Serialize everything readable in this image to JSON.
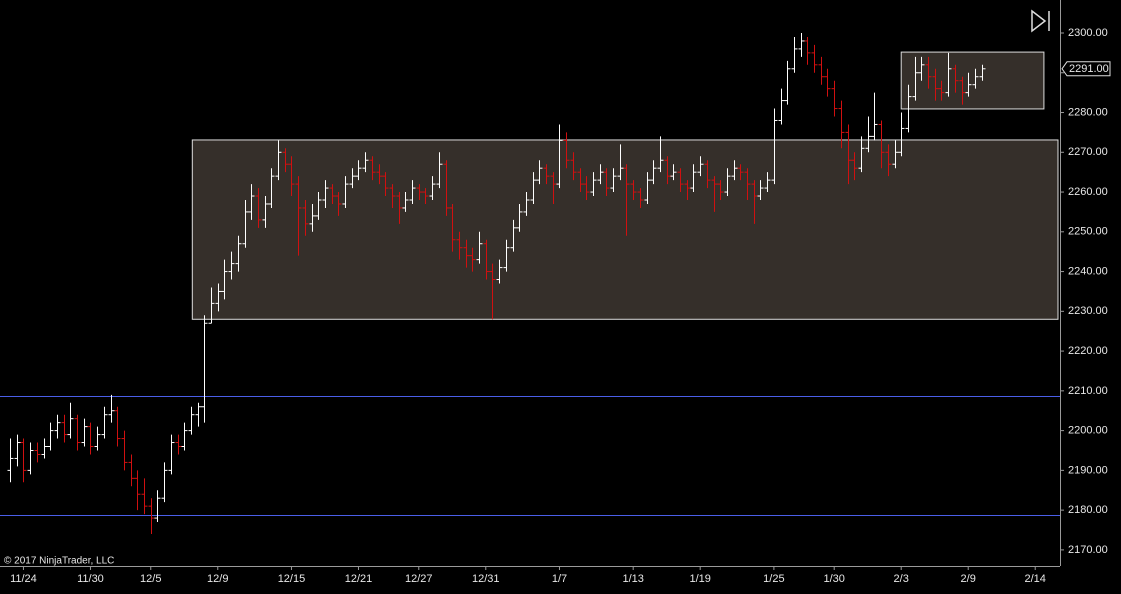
{
  "chart_data": {
    "type": "ohlc",
    "up_color": "#ffffff",
    "down_color": "#d01010",
    "line_color": "#4a5ee8",
    "box_fill": "#38322c",
    "box_stroke": "#dddddd",
    "attribution": "© 2017 NinjaTrader, LLC",
    "xlim": [
      -1.5,
      156.7
    ],
    "ylim": [
      2166.2,
      2308.3
    ],
    "xticks": [
      {
        "value": 2,
        "label": "11/24"
      },
      {
        "value": 12,
        "label": "11/30"
      },
      {
        "value": 21,
        "label": "12/5"
      },
      {
        "value": 31,
        "label": "12/9"
      },
      {
        "value": 42,
        "label": "12/15"
      },
      {
        "value": 52,
        "label": "12/21"
      },
      {
        "value": 61,
        "label": "12/27"
      },
      {
        "value": 71,
        "label": "12/31"
      },
      {
        "value": 82,
        "label": "1/7"
      },
      {
        "value": 93,
        "label": "1/13"
      },
      {
        "value": 103,
        "label": "1/19"
      },
      {
        "value": 114,
        "label": "1/25"
      },
      {
        "value": 123,
        "label": "1/30"
      },
      {
        "value": 133,
        "label": "2/3"
      },
      {
        "value": 143,
        "label": "2/9"
      },
      {
        "value": 153,
        "label": "2/14"
      }
    ],
    "yticks": [
      {
        "value": 2170,
        "label": "2170.00"
      },
      {
        "value": 2180,
        "label": "2180.00"
      },
      {
        "value": 2190,
        "label": "2190.00"
      },
      {
        "value": 2200,
        "label": "2200.00"
      },
      {
        "value": 2210,
        "label": "2210.00"
      },
      {
        "value": 2220,
        "label": "2220.00"
      },
      {
        "value": 2230,
        "label": "2230.00"
      },
      {
        "value": 2240,
        "label": "2240.00"
      },
      {
        "value": 2250,
        "label": "2250.00"
      },
      {
        "value": 2260,
        "label": "2260.00"
      },
      {
        "value": 2270,
        "label": "2270.00"
      },
      {
        "value": 2280,
        "label": "2280.00"
      },
      {
        "value": 2290,
        "label": "2290.00"
      },
      {
        "value": 2300,
        "label": "2300.00"
      }
    ],
    "last_price": {
      "value": 2291,
      "label": "2291.00"
    },
    "rectangles": [
      {
        "x": [
          27.2,
          156.4
        ],
        "y": [
          2228,
          2273.1
        ]
      },
      {
        "x": [
          133,
          154.3
        ],
        "y": [
          2280.9,
          2295.2
        ]
      }
    ],
    "hlines": [
      2208.7,
      2178.8
    ],
    "bars": [
      [
        2190,
        2198,
        2187,
        2193
      ],
      [
        2193,
        2199,
        2191,
        2197
      ],
      [
        2197,
        2198,
        2187,
        2190
      ],
      [
        2190,
        2197,
        2189,
        2195
      ],
      [
        2195,
        2197,
        2192,
        2194
      ],
      [
        2194,
        2198,
        2193,
        2196
      ],
      [
        2196,
        2202,
        2195,
        2200
      ],
      [
        2200,
        2204,
        2198,
        2202
      ],
      [
        2202,
        2204,
        2197,
        2199
      ],
      [
        2199,
        2207,
        2198,
        2203
      ],
      [
        2203,
        2204,
        2195,
        2197
      ],
      [
        2197,
        2203,
        2196,
        2201
      ],
      [
        2201,
        2202,
        2194,
        2196
      ],
      [
        2196,
        2201,
        2195,
        2199
      ],
      [
        2199,
        2206,
        2198,
        2204
      ],
      [
        2204,
        2209,
        2202,
        2205
      ],
      [
        2205,
        2206,
        2196,
        2198
      ],
      [
        2198,
        2200,
        2190,
        2192
      ],
      [
        2192,
        2194,
        2186,
        2188
      ],
      [
        2188,
        2190,
        2180,
        2184
      ],
      [
        2184,
        2188,
        2179,
        2181
      ],
      [
        2181,
        2183,
        2174,
        2178
      ],
      [
        2178,
        2185,
        2177,
        2183
      ],
      [
        2183,
        2192,
        2182,
        2190
      ],
      [
        2190,
        2199,
        2189,
        2197
      ],
      [
        2197,
        2199,
        2194,
        2196
      ],
      [
        2196,
        2202,
        2195,
        2200
      ],
      [
        2200,
        2206,
        2199,
        2204
      ],
      [
        2204,
        2207,
        2201,
        2206
      ],
      [
        2206,
        2229,
        2202,
        2227
      ],
      [
        2227,
        2236,
        2227,
        2232
      ],
      [
        2232,
        2237,
        2230,
        2235
      ],
      [
        2235,
        2243,
        2233,
        2240
      ],
      [
        2240,
        2245,
        2238,
        2242
      ],
      [
        2242,
        2249,
        2240,
        2247
      ],
      [
        2247,
        2258,
        2246,
        2255
      ],
      [
        2255,
        2262,
        2253,
        2259
      ],
      [
        2259,
        2261,
        2251,
        2253
      ],
      [
        2253,
        2259,
        2251,
        2257
      ],
      [
        2257,
        2266,
        2256,
        2264
      ],
      [
        2264,
        2273,
        2263,
        2270
      ],
      [
        2270,
        2271,
        2265,
        2267
      ],
      [
        2267,
        2269,
        2259,
        2262
      ],
      [
        2262,
        2264,
        2244,
        2256
      ],
      [
        2256,
        2258,
        2249,
        2252
      ],
      [
        2252,
        2257,
        2250,
        2254
      ],
      [
        2254,
        2260,
        2253,
        2258
      ],
      [
        2258,
        2263,
        2256,
        2261
      ],
      [
        2261,
        2262,
        2257,
        2259
      ],
      [
        2259,
        2260,
        2254,
        2257
      ],
      [
        2257,
        2264,
        2256,
        2262
      ],
      [
        2262,
        2266,
        2261,
        2264
      ],
      [
        2264,
        2268,
        2263,
        2266
      ],
      [
        2266,
        2270,
        2265,
        2268
      ],
      [
        2268,
        2269,
        2263,
        2265
      ],
      [
        2265,
        2267,
        2262,
        2264
      ],
      [
        2264,
        2265,
        2259,
        2261
      ],
      [
        2261,
        2262,
        2256,
        2259
      ],
      [
        2259,
        2260,
        2252,
        2256
      ],
      [
        2256,
        2260,
        2255,
        2258
      ],
      [
        2258,
        2263,
        2257,
        2261
      ],
      [
        2261,
        2262,
        2258,
        2260
      ],
      [
        2260,
        2261,
        2257,
        2259
      ],
      [
        2259,
        2264,
        2258,
        2262
      ],
      [
        2262,
        2270,
        2261,
        2267
      ],
      [
        2267,
        2268,
        2254,
        2256
      ],
      [
        2256,
        2257,
        2245,
        2248
      ],
      [
        2248,
        2250,
        2243,
        2246
      ],
      [
        2246,
        2248,
        2241,
        2244
      ],
      [
        2244,
        2246,
        2240,
        2243
      ],
      [
        2243,
        2250,
        2242,
        2247
      ],
      [
        2247,
        2248,
        2238,
        2240
      ],
      [
        2240,
        2242,
        2228,
        2238
      ],
      [
        2238,
        2243,
        2237,
        2241
      ],
      [
        2241,
        2248,
        2240,
        2246
      ],
      [
        2246,
        2253,
        2245,
        2251
      ],
      [
        2251,
        2257,
        2250,
        2255
      ],
      [
        2255,
        2260,
        2254,
        2258
      ],
      [
        2258,
        2265,
        2257,
        2263
      ],
      [
        2263,
        2268,
        2262,
        2266
      ],
      [
        2266,
        2267,
        2262,
        2264
      ],
      [
        2264,
        2265,
        2257,
        2262
      ],
      [
        2262,
        2277,
        2261,
        2273
      ],
      [
        2273,
        2275,
        2266,
        2268
      ],
      [
        2268,
        2270,
        2263,
        2265
      ],
      [
        2265,
        2266,
        2260,
        2262
      ],
      [
        2262,
        2264,
        2258,
        2260
      ],
      [
        2260,
        2265,
        2259,
        2263
      ],
      [
        2263,
        2267,
        2262,
        2265
      ],
      [
        2265,
        2266,
        2259,
        2261
      ],
      [
        2261,
        2266,
        2260,
        2264
      ],
      [
        2264,
        2272,
        2263,
        2266
      ],
      [
        2266,
        2267,
        2249,
        2262
      ],
      [
        2262,
        2263,
        2258,
        2260
      ],
      [
        2260,
        2261,
        2256,
        2258
      ],
      [
        2258,
        2265,
        2257,
        2263
      ],
      [
        2263,
        2268,
        2262,
        2266
      ],
      [
        2266,
        2274,
        2265,
        2268
      ],
      [
        2268,
        2269,
        2262,
        2264
      ],
      [
        2264,
        2267,
        2263,
        2265
      ],
      [
        2265,
        2266,
        2260,
        2262
      ],
      [
        2262,
        2263,
        2258,
        2261
      ],
      [
        2261,
        2267,
        2260,
        2265
      ],
      [
        2265,
        2269,
        2264,
        2267
      ],
      [
        2267,
        2268,
        2261,
        2263
      ],
      [
        2263,
        2264,
        2255,
        2262
      ],
      [
        2262,
        2263,
        2258,
        2260
      ],
      [
        2260,
        2266,
        2259,
        2264
      ],
      [
        2264,
        2268,
        2263,
        2266
      ],
      [
        2266,
        2267,
        2263,
        2265
      ],
      [
        2265,
        2266,
        2258,
        2262
      ],
      [
        2262,
        2263,
        2252,
        2259
      ],
      [
        2259,
        2263,
        2258,
        2261
      ],
      [
        2261,
        2265,
        2260,
        2263
      ],
      [
        2263,
        2281,
        2262,
        2278
      ],
      [
        2278,
        2286,
        2277,
        2283
      ],
      [
        2283,
        2293,
        2282,
        2291
      ],
      [
        2291,
        2299,
        2290,
        2296
      ],
      [
        2296,
        2300,
        2294,
        2298
      ],
      [
        2298,
        2299,
        2292,
        2295
      ],
      [
        2295,
        2297,
        2290,
        2292
      ],
      [
        2292,
        2294,
        2287,
        2289
      ],
      [
        2289,
        2291,
        2284,
        2286
      ],
      [
        2286,
        2288,
        2279,
        2281
      ],
      [
        2281,
        2283,
        2271,
        2275
      ],
      [
        2275,
        2277,
        2262,
        2268
      ],
      [
        2268,
        2270,
        2263,
        2266
      ],
      [
        2266,
        2274,
        2265,
        2271
      ],
      [
        2271,
        2279,
        2270,
        2274
      ],
      [
        2274,
        2285,
        2273,
        2277
      ],
      [
        2277,
        2278,
        2266,
        2270
      ],
      [
        2270,
        2272,
        2264,
        2267
      ],
      [
        2267,
        2273,
        2266,
        2270
      ],
      [
        2270,
        2280,
        2269,
        2276
      ],
      [
        2276,
        2287,
        2275,
        2284
      ],
      [
        2284,
        2294,
        2283,
        2290
      ],
      [
        2290,
        2294,
        2288,
        2292
      ],
      [
        2292,
        2294,
        2286,
        2289
      ],
      [
        2289,
        2291,
        2283,
        2286
      ],
      [
        2286,
        2288,
        2283,
        2285
      ],
      [
        2285,
        2295,
        2284,
        2291
      ],
      [
        2291,
        2292,
        2285,
        2288
      ],
      [
        2288,
        2289,
        2282,
        2285
      ],
      [
        2285,
        2290,
        2284,
        2287
      ],
      [
        2287,
        2291,
        2286,
        2289
      ],
      [
        2289,
        2292,
        2288,
        2291
      ]
    ]
  }
}
